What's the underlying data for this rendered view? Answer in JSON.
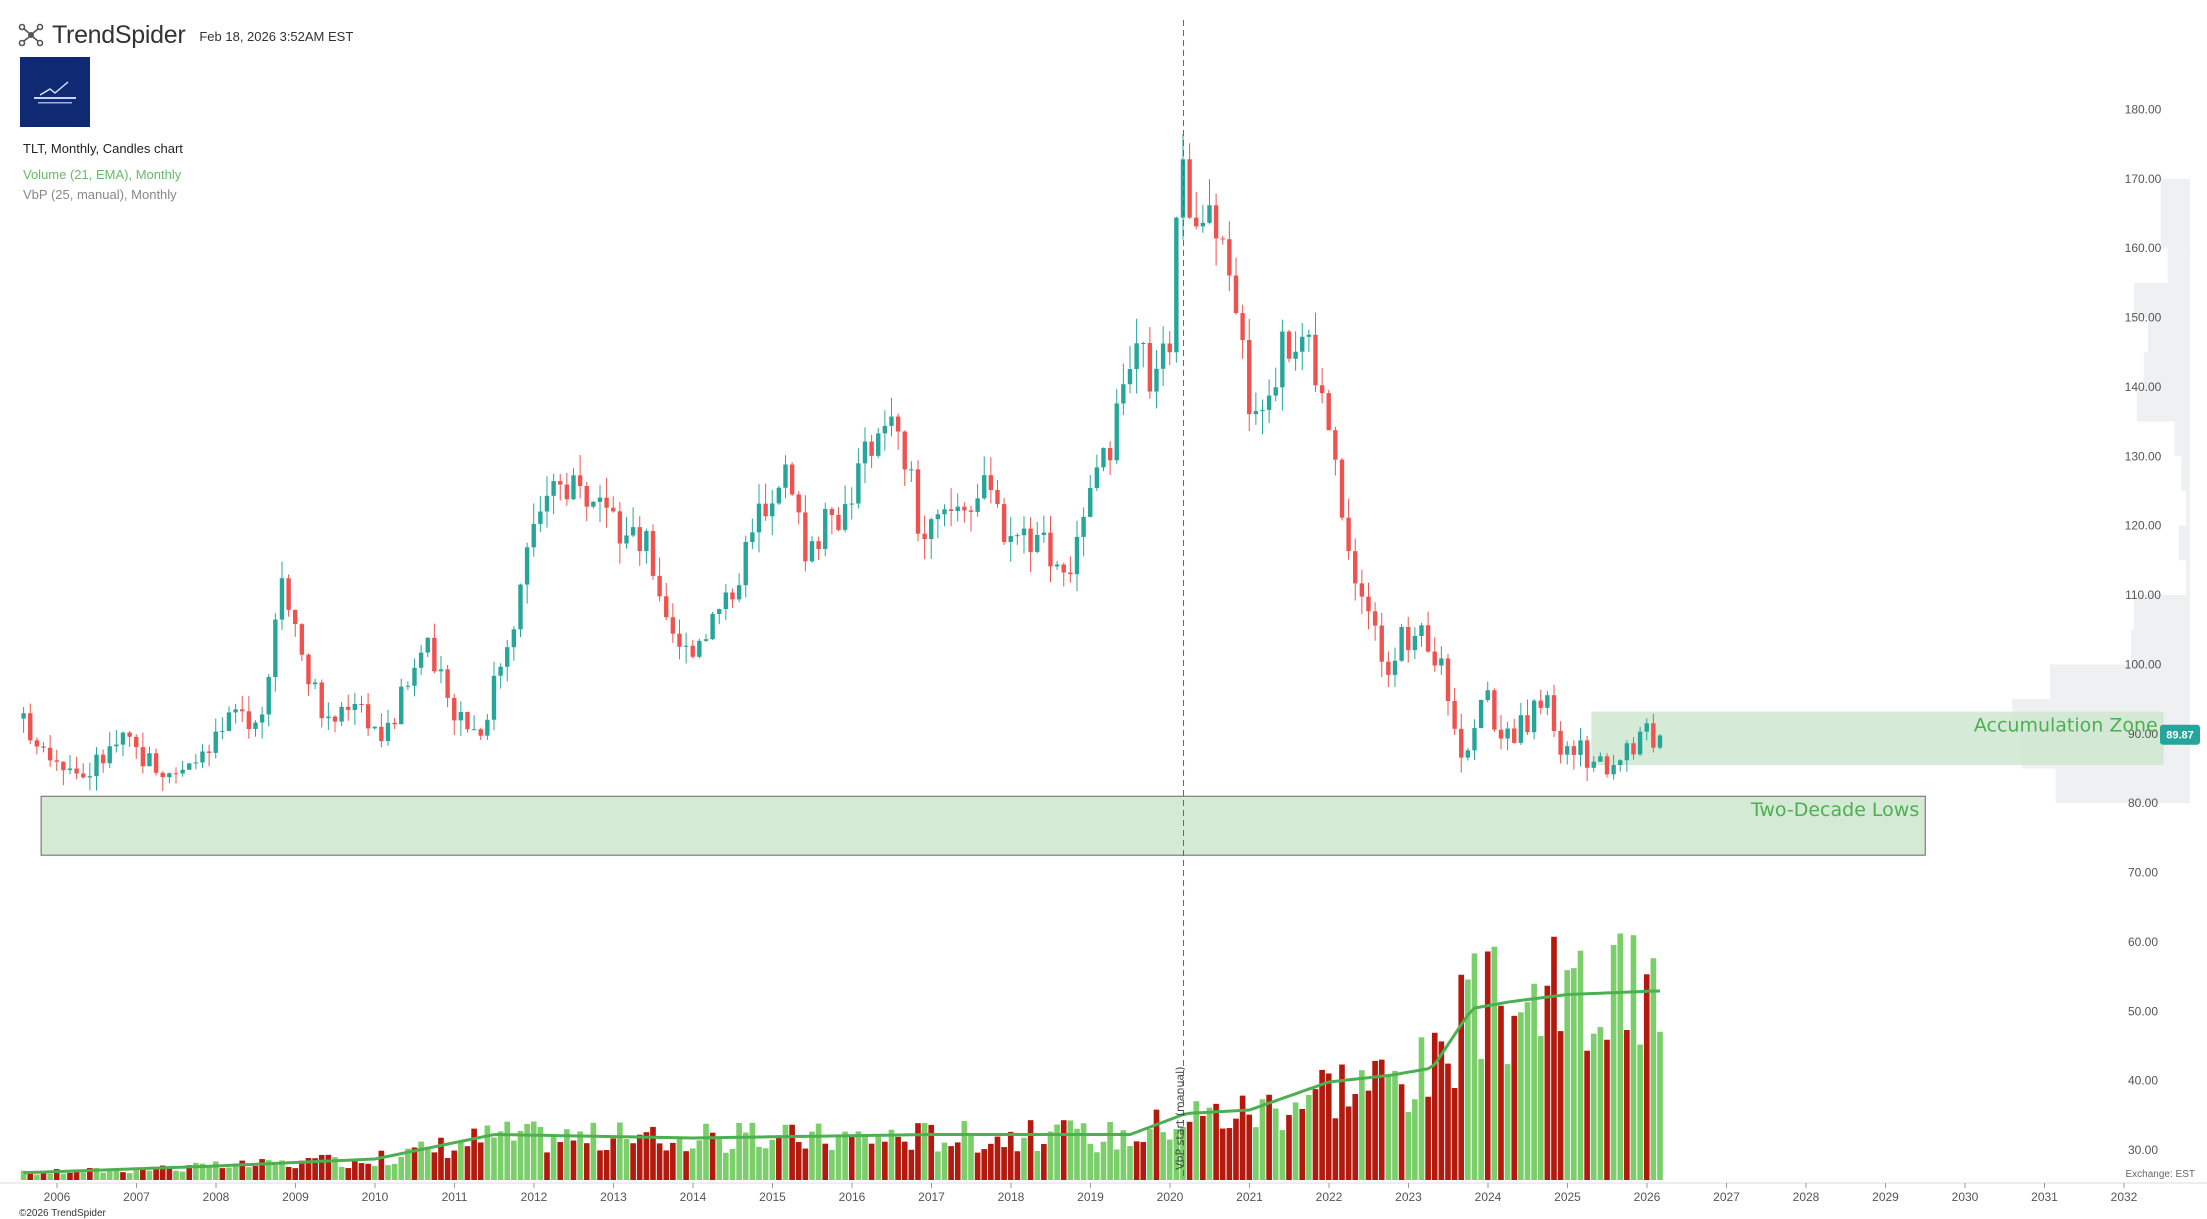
{
  "header": {
    "brand": "TrendSpider",
    "timestamp": "Feb 18, 2026 3:52AM EST",
    "chart_label": "TLT, Monthly, Candles chart",
    "volume_label": "Volume (21, EMA), Monthly",
    "vbp_label": "VbP (25, manual), Monthly"
  },
  "footer": {
    "copyright": "©2026 TrendSpider",
    "exchange": "Exchange: EST"
  },
  "colors": {
    "up": "#26a69a",
    "down": "#ef5350",
    "vol_up": "#7bcf6a",
    "vol_down": "#b3190d",
    "zone": "#cfe8d0",
    "zone_text": "#4caf50",
    "price_badge": "#26a69a"
  },
  "chart_data": {
    "type": "candlestick",
    "symbol": "TLT",
    "interval": "Monthly",
    "x_ticks": [
      "2006",
      "2007",
      "2008",
      "2009",
      "2010",
      "2011",
      "2012",
      "2013",
      "2014",
      "2015",
      "2016",
      "2017",
      "2018",
      "2019",
      "2020",
      "2021",
      "2022",
      "2023",
      "2024",
      "2025",
      "2026",
      "2027",
      "2028",
      "2029",
      "2030",
      "2031",
      "2032"
    ],
    "y_ticks": [
      "180.00",
      "170.00",
      "160.00",
      "150.00",
      "140.00",
      "130.00",
      "120.00",
      "110.00",
      "100.00",
      "90.00",
      "80.00",
      "70.00",
      "60.00",
      "50.00",
      "40.00",
      "30.00"
    ],
    "ylim": [
      27,
      183
    ],
    "x_range": [
      2005.5,
      2032.5
    ],
    "last_price": "89.87",
    "marker_date": 2020.17,
    "marker_label": "VbP start (manual)",
    "zones": [
      {
        "label": "Accumulation Zone",
        "x0": 2025.3,
        "x1": 2032.5,
        "y_low": 85.5,
        "y_high": 93.2
      },
      {
        "label": "Two-Decade Lows",
        "x0": 2005.8,
        "x1": 2029.5,
        "y_low": 72.5,
        "y_high": 81
      }
    ],
    "anchors": [
      [
        2005.5,
        93
      ],
      [
        2006.4,
        84
      ],
      [
        2006.9,
        89
      ],
      [
        2007.5,
        84
      ],
      [
        2008.2,
        91
      ],
      [
        2008.7,
        94
      ],
      [
        2008.9,
        115
      ],
      [
        2009.2,
        100
      ],
      [
        2009.5,
        91
      ],
      [
        2009.8,
        96
      ],
      [
        2010.2,
        89
      ],
      [
        2010.7,
        103
      ],
      [
        2011.0,
        95
      ],
      [
        2011.4,
        90
      ],
      [
        2011.9,
        110
      ],
      [
        2012.1,
        122
      ],
      [
        2012.6,
        127
      ],
      [
        2013.0,
        120
      ],
      [
        2013.5,
        117
      ],
      [
        2013.8,
        106
      ],
      [
        2014.0,
        102
      ],
      [
        2014.5,
        109
      ],
      [
        2015.0,
        124
      ],
      [
        2015.2,
        129
      ],
      [
        2015.5,
        117
      ],
      [
        2016.0,
        123
      ],
      [
        2016.5,
        137
      ],
      [
        2016.8,
        128
      ],
      [
        2016.95,
        118
      ],
      [
        2017.5,
        124
      ],
      [
        2017.8,
        125
      ],
      [
        2018.0,
        120
      ],
      [
        2018.5,
        118
      ],
      [
        2018.8,
        113
      ],
      [
        2019.0,
        120
      ],
      [
        2019.7,
        145
      ],
      [
        2019.9,
        140
      ],
      [
        2020.1,
        148
      ],
      [
        2020.2,
        170
      ],
      [
        2020.6,
        164
      ],
      [
        2020.9,
        154
      ],
      [
        2021.1,
        136
      ],
      [
        2021.5,
        145
      ],
      [
        2021.8,
        148
      ],
      [
        2022.1,
        133
      ],
      [
        2022.3,
        116
      ],
      [
        2022.5,
        110
      ],
      [
        2022.8,
        100
      ],
      [
        2022.95,
        103
      ],
      [
        2023.3,
        104
      ],
      [
        2023.6,
        96
      ],
      [
        2023.8,
        84
      ],
      [
        2024.0,
        97
      ],
      [
        2024.3,
        89
      ],
      [
        2024.6,
        92
      ],
      [
        2024.8,
        96
      ],
      [
        2025.0,
        88
      ],
      [
        2025.3,
        87
      ],
      [
        2025.6,
        86
      ],
      [
        2025.8,
        88
      ],
      [
        2026.1,
        89.87
      ]
    ],
    "volume_scale": "relative (0-1)",
    "volume_anchors": [
      [
        2005.5,
        0.02
      ],
      [
        2008,
        0.04
      ],
      [
        2010,
        0.06
      ],
      [
        2011.5,
        0.13
      ],
      [
        2014,
        0.12
      ],
      [
        2017,
        0.13
      ],
      [
        2019.5,
        0.13
      ],
      [
        2020.2,
        0.19
      ],
      [
        2021,
        0.2
      ],
      [
        2022,
        0.28
      ],
      [
        2022.8,
        0.3
      ],
      [
        2023.3,
        0.32
      ],
      [
        2023.8,
        0.49
      ],
      [
        2024.3,
        0.51
      ],
      [
        2025.0,
        0.53
      ],
      [
        2026.1,
        0.54
      ]
    ],
    "vbp_profile": [
      {
        "price": 167.5,
        "width": 0.21
      },
      {
        "price": 162.5,
        "width": 0.21
      },
      {
        "price": 157.5,
        "width": 0.16
      },
      {
        "price": 152.5,
        "width": 0.4
      },
      {
        "price": 147.5,
        "width": 0.3
      },
      {
        "price": 142.5,
        "width": 0.33
      },
      {
        "price": 137.5,
        "width": 0.38
      },
      {
        "price": 132.5,
        "width": 0.11
      },
      {
        "price": 127.5,
        "width": 0.06
      },
      {
        "price": 122.5,
        "width": 0.03
      },
      {
        "price": 117.5,
        "width": 0.08
      },
      {
        "price": 112.5,
        "width": 0.03
      },
      {
        "price": 107.5,
        "width": 0.4
      },
      {
        "price": 102.5,
        "width": 0.42
      },
      {
        "price": 97.5,
        "width": 1.0
      },
      {
        "price": 92.5,
        "width": 1.27
      },
      {
        "price": 87.5,
        "width": 1.2
      },
      {
        "price": 82.5,
        "width": 0.96
      }
    ]
  }
}
